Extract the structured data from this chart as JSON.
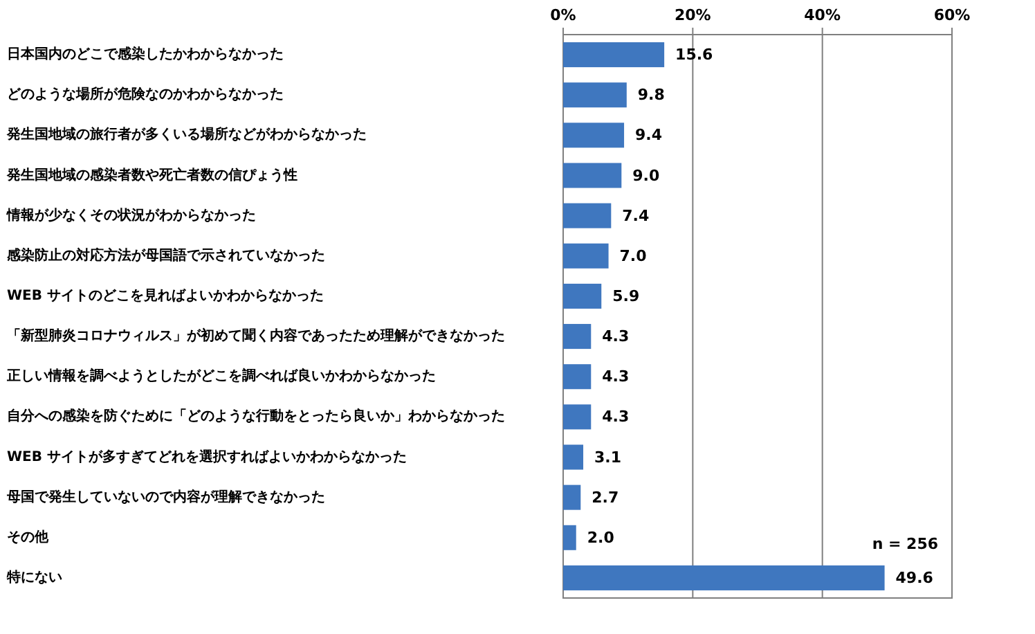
{
  "chart_data": {
    "type": "bar",
    "orientation": "horizontal",
    "categories": [
      "日本国内のどこで感染したかわからなかった",
      "どのような場所が危険なのかわからなかった",
      "発生国地域の旅行者が多くいる場所などがわからなかった",
      "発生国地域の感染者数や死亡者数の信ぴょう性",
      "情報が少なくその状況がわからなかった",
      "感染防止の対応方法が母国語で示されていなかった",
      "WEB サイトのどこを見ればよいかわからなかった",
      "「新型肺炎コロナウィルス」が初めて聞く内容であったため理解ができなかった",
      "正しい情報を調べようとしたがどこを調べれば良いかわからなかった",
      "自分への感染を防ぐために「どのような行動をとったら良いか」わからなかった",
      "WEB サイトが多すぎてどれを選択すればよいかわからなかった",
      "母国で発生していないので内容が理解できなかった",
      "その他",
      "特にない"
    ],
    "values": [
      15.6,
      9.8,
      9.4,
      9.0,
      7.4,
      7.0,
      5.9,
      4.3,
      4.3,
      4.3,
      3.1,
      2.7,
      2.0,
      49.6
    ],
    "value_labels": [
      "15.6",
      "9.8",
      "9.4",
      "9.0",
      "7.4",
      "7.0",
      "5.9",
      "4.3",
      "4.3",
      "4.3",
      "3.1",
      "2.7",
      "2.0",
      "49.6"
    ],
    "color": "#3f77bf",
    "xlim": [
      0,
      60
    ],
    "xticks": [
      {
        "value": 0,
        "label": "0%"
      },
      {
        "value": 20,
        "label": "20%"
      },
      {
        "value": 40,
        "label": "40%"
      },
      {
        "value": 60,
        "label": "60%"
      }
    ],
    "grid": "x",
    "annotations": [
      "n = 256"
    ]
  }
}
